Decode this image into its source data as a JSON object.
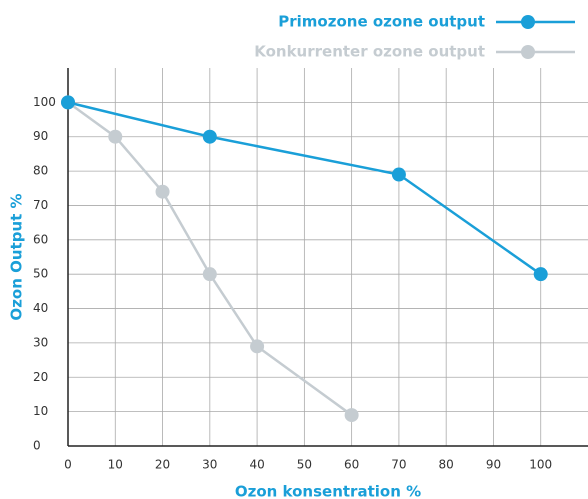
{
  "chart_data": {
    "type": "line",
    "x_label": "Ozon konsentration %",
    "y_label": "Ozon Output %",
    "series": [
      {
        "name": "Primozone ozone output",
        "color": "#1a9fd8",
        "x": [
          0,
          30,
          70,
          100
        ],
        "values": [
          100,
          90,
          79,
          50
        ]
      },
      {
        "name": "Konkurrenter ozone output",
        "color": "#c5ccd1",
        "x": [
          0,
          10,
          20,
          30,
          40,
          60
        ],
        "values": [
          100,
          90,
          74,
          50,
          29,
          9
        ]
      }
    ],
    "xlim": [
      0,
      110
    ],
    "xticks": [
      0,
      10,
      20,
      30,
      40,
      50,
      60,
      70,
      80,
      90,
      100
    ],
    "ylim": [
      0,
      110
    ],
    "yticks": [
      0,
      10,
      20,
      30,
      40,
      50,
      60,
      70,
      80,
      90,
      100
    ],
    "grid": true,
    "legend": "top-right"
  }
}
